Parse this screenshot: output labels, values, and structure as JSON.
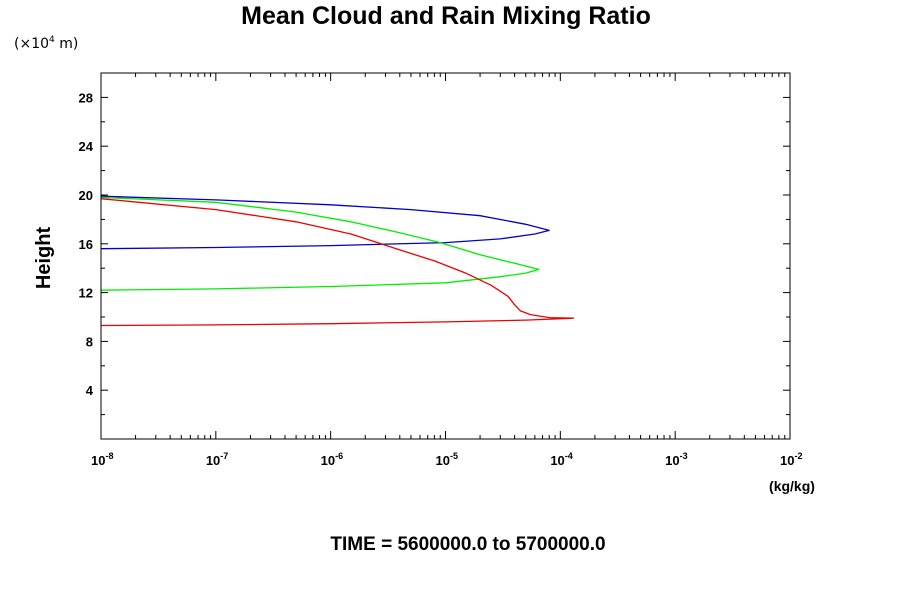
{
  "chart_data": {
    "type": "line",
    "title": "Mean Cloud and Rain Mixing Ratio",
    "y_scale_note_prefix": "(×10",
    "y_scale_note_exp": "4",
    "y_scale_note_suffix": " m)",
    "ylabel": "Height",
    "xlabel": "(kg/kg)",
    "footer": "TIME = 5600000.0 to 5700000.0",
    "x_scale": "log",
    "xlim": [
      1e-08,
      0.01
    ],
    "ylim": [
      0,
      30
    ],
    "x_tick_base": "10",
    "x_ticks": [
      {
        "value": 1e-08,
        "exp": "-8"
      },
      {
        "value": 1e-07,
        "exp": "-7"
      },
      {
        "value": 1e-06,
        "exp": "-6"
      },
      {
        "value": 1e-05,
        "exp": "-5"
      },
      {
        "value": 0.0001,
        "exp": "-4"
      },
      {
        "value": 0.001,
        "exp": "-3"
      },
      {
        "value": 0.01,
        "exp": "-2"
      }
    ],
    "y_ticks": [
      4,
      8,
      12,
      16,
      20,
      24,
      28
    ],
    "series": [
      {
        "color": "#0000cc",
        "points": [
          [
            1e-08,
            15.6
          ],
          [
            1e-07,
            15.7
          ],
          [
            1e-06,
            15.85
          ],
          [
            1e-05,
            16.1
          ],
          [
            3e-05,
            16.4
          ],
          [
            6e-05,
            16.8
          ],
          [
            8e-05,
            17.1
          ],
          [
            5e-05,
            17.6
          ],
          [
            2e-05,
            18.3
          ],
          [
            5e-06,
            18.8
          ],
          [
            1e-06,
            19.2
          ],
          [
            1e-07,
            19.6
          ],
          [
            1e-08,
            19.9
          ]
        ]
      },
      {
        "color": "#00ee00",
        "points": [
          [
            1e-08,
            12.2
          ],
          [
            1e-07,
            12.3
          ],
          [
            1e-06,
            12.5
          ],
          [
            1e-05,
            12.8
          ],
          [
            3e-05,
            13.3
          ],
          [
            5e-05,
            13.6
          ],
          [
            6.5e-05,
            13.9
          ],
          [
            4e-05,
            14.4
          ],
          [
            2e-05,
            15.1
          ],
          [
            9e-06,
            16.1
          ],
          [
            4e-06,
            16.9
          ],
          [
            1.5e-06,
            17.8
          ],
          [
            5e-07,
            18.6
          ],
          [
            1e-07,
            19.4
          ],
          [
            1e-08,
            19.8
          ]
        ]
      },
      {
        "color": "#ee0000",
        "points": [
          [
            1e-08,
            9.3
          ],
          [
            1e-07,
            9.35
          ],
          [
            1e-06,
            9.45
          ],
          [
            1e-05,
            9.6
          ],
          [
            5e-05,
            9.75
          ],
          [
            0.00013,
            9.9
          ],
          [
            8e-05,
            9.95
          ],
          [
            5.5e-05,
            10.2
          ],
          [
            4.5e-05,
            10.5
          ],
          [
            4e-05,
            11.0
          ],
          [
            3.5e-05,
            11.7
          ],
          [
            2.5e-05,
            12.6
          ],
          [
            1.5e-05,
            13.6
          ],
          [
            8e-06,
            14.6
          ],
          [
            4e-06,
            15.5
          ],
          [
            1.5e-06,
            16.8
          ],
          [
            5e-07,
            17.8
          ],
          [
            1e-07,
            18.8
          ],
          [
            1e-08,
            19.7
          ]
        ]
      }
    ]
  }
}
